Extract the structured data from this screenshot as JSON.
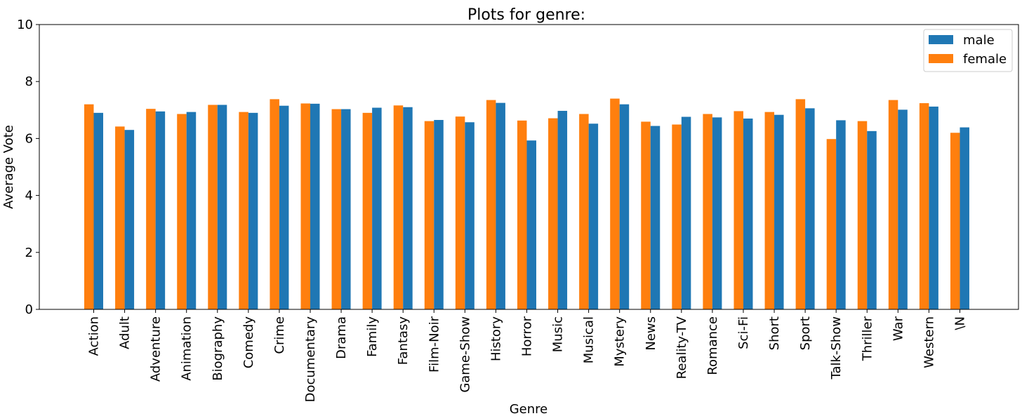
{
  "chart_data": {
    "type": "bar",
    "title": "Plots for genre:",
    "xlabel": "Genre",
    "ylabel": "Average Vote",
    "ylim": [
      0,
      10
    ],
    "yticks": [
      0,
      2,
      4,
      6,
      8,
      10
    ],
    "grid": false,
    "legend_position": "top-right",
    "categories": [
      "Action",
      "Adult",
      "Adventure",
      "Animation",
      "Biography",
      "Comedy",
      "Crime",
      "Documentary",
      "Drama",
      "Family",
      "Fantasy",
      "Film-Noir",
      "Game-Show",
      "History",
      "Horror",
      "Music",
      "Musical",
      "Mystery",
      "News",
      "Reality-TV",
      "Romance",
      "Sci-Fi",
      "Short",
      "Sport",
      "Talk-Show",
      "Thriller",
      "War",
      "Western",
      "\\N"
    ],
    "series": [
      {
        "name": "male",
        "color": "#1f77b4",
        "values": [
          6.9,
          6.3,
          6.95,
          6.93,
          7.18,
          6.9,
          7.15,
          7.22,
          7.03,
          7.08,
          7.1,
          6.65,
          6.57,
          7.25,
          5.93,
          6.97,
          6.52,
          7.2,
          6.44,
          6.76,
          6.74,
          6.7,
          6.83,
          7.06,
          6.64,
          6.26,
          7.01,
          7.12,
          6.39
        ]
      },
      {
        "name": "female",
        "color": "#ff7f0e",
        "values": [
          7.2,
          6.42,
          7.04,
          6.86,
          7.18,
          6.93,
          7.38,
          7.23,
          7.03,
          6.9,
          7.16,
          6.61,
          6.77,
          7.35,
          6.63,
          6.71,
          6.86,
          7.4,
          6.59,
          6.49,
          6.86,
          6.96,
          6.93,
          7.38,
          5.98,
          6.61,
          7.35,
          7.24,
          6.2
        ]
      }
    ]
  }
}
